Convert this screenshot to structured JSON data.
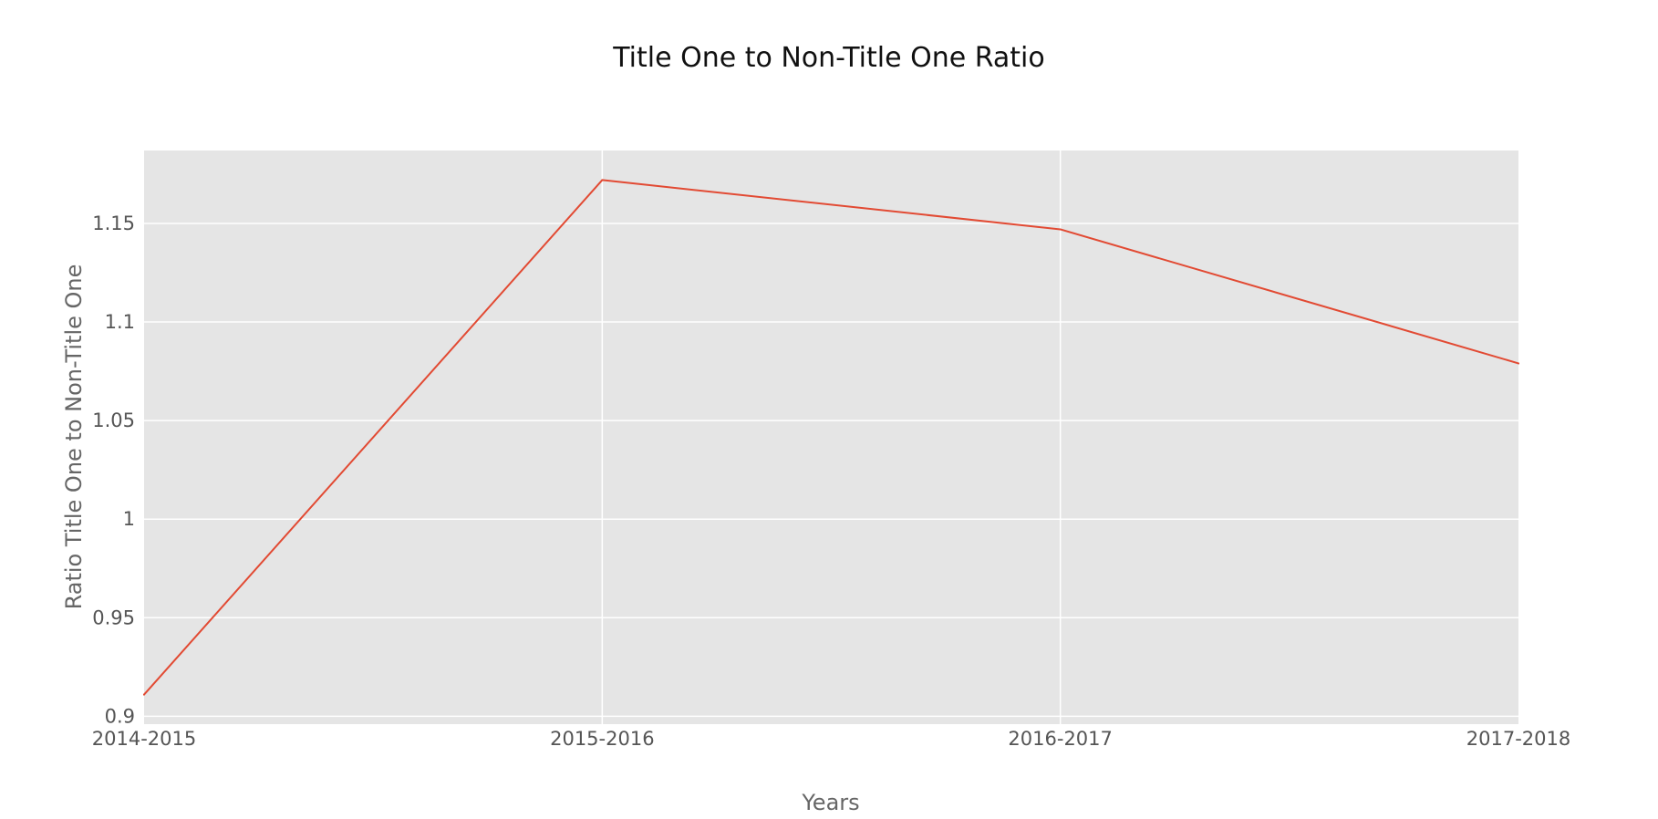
{
  "colors": {
    "plot_background": "#e5e5e5",
    "gridline": "#ffffff",
    "series_line": "#e24a33",
    "title_text": "#111111",
    "axis_text": "#666666"
  },
  "chart_data": {
    "type": "line",
    "title": "Title One to Non-Title One Ratio",
    "xlabel": "Years",
    "ylabel": "Ratio Title One to Non-Title One",
    "categories": [
      "2014-2015",
      "2015-2016",
      "2016-2017",
      "2017-2018"
    ],
    "series": [
      {
        "values": [
          0.911,
          1.172,
          1.147,
          1.079
        ]
      }
    ],
    "ylim": [
      0.896,
      1.187
    ],
    "yticks": [
      0.9,
      0.95,
      1,
      1.05,
      1.1,
      1.15
    ],
    "ytick_labels": [
      "0.9",
      "0.95",
      "1",
      "1.05",
      "1.1",
      "1.15"
    ],
    "grid": true,
    "legend": "none"
  }
}
